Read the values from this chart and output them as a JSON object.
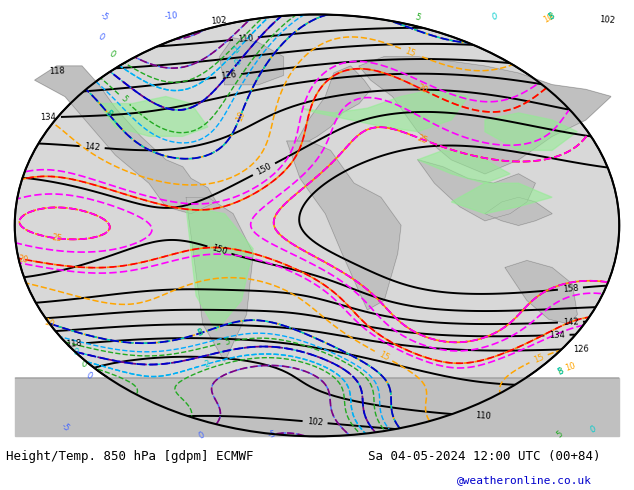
{
  "title_left": "Height/Temp. 850 hPa [gdpm] ECMWF",
  "title_right": "Sa 04-05-2024 12:00 UTC (00+84)",
  "copyright": "@weatheronline.co.uk",
  "copyright_color": "#0000cc",
  "fig_width": 6.34,
  "fig_height": 4.9,
  "bg_color": "#ffffff",
  "footer_fontsize": 9,
  "copyright_fontsize": 8
}
